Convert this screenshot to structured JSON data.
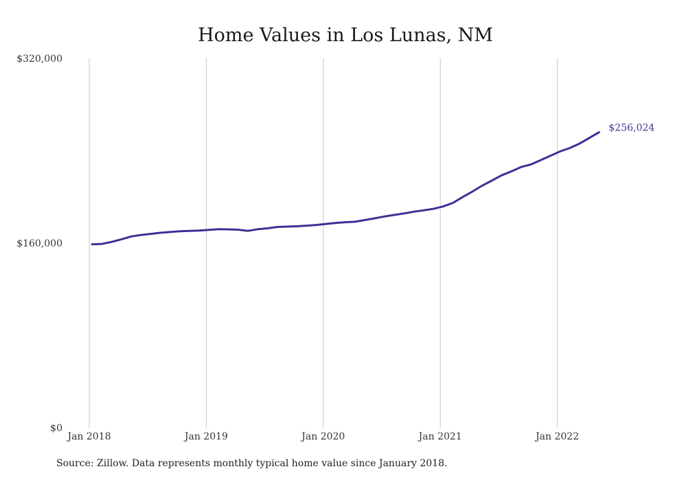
{
  "chart_data": {
    "type": "line",
    "title": "Home Values in Los Lunas, NM",
    "xlabel": "",
    "ylabel": "",
    "x_ticks": [
      "Jan 2018",
      "Jan 2019",
      "Jan 2020",
      "Jan 2021",
      "Jan 2022"
    ],
    "y_ticks": [
      "$0",
      "$160,000",
      "$320,000"
    ],
    "y_tick_values": [
      0,
      160000,
      320000
    ],
    "ylim": [
      0,
      320000
    ],
    "xlim": [
      "2018-01",
      "2022-06"
    ],
    "grid": "vertical",
    "line_color": "#3a3196",
    "gridline_color": "#c8c8c8",
    "end_label": "$256,024",
    "series": [
      {
        "x": [
          "2018-01",
          "2018-02",
          "2018-03",
          "2018-04",
          "2018-05",
          "2018-06",
          "2018-07",
          "2018-08",
          "2018-09",
          "2018-10",
          "2018-11",
          "2018-12",
          "2019-01",
          "2019-02",
          "2019-03",
          "2019-04",
          "2019-05",
          "2019-06",
          "2019-07",
          "2019-08",
          "2019-09",
          "2019-10",
          "2019-11",
          "2019-12",
          "2020-01",
          "2020-02",
          "2020-03",
          "2020-04",
          "2020-05",
          "2020-06",
          "2020-07",
          "2020-08",
          "2020-09",
          "2020-10",
          "2020-11",
          "2020-12",
          "2021-01",
          "2021-02",
          "2021-03",
          "2021-04",
          "2021-05",
          "2021-06",
          "2021-07",
          "2021-08",
          "2021-09",
          "2021-10",
          "2021-11",
          "2021-12",
          "2022-01",
          "2022-02",
          "2022-03",
          "2022-04",
          "2022-05"
        ],
        "values": [
          158900,
          159300,
          161000,
          163200,
          165700,
          167000,
          168000,
          168900,
          169600,
          170300,
          170600,
          170900,
          171500,
          172100,
          171900,
          171600,
          170600,
          172000,
          172800,
          174000,
          174300,
          174600,
          175100,
          175700,
          176600,
          177500,
          178100,
          178500,
          180000,
          181500,
          183100,
          184400,
          185700,
          187200,
          188400,
          189700,
          191700,
          194800,
          199800,
          204600,
          209700,
          214100,
          218700,
          222100,
          225900,
          228100,
          231800,
          235600,
          239400,
          242400,
          246200,
          251100,
          256024
        ]
      }
    ]
  },
  "source_text": "Source: Zillow. Data represents monthly typical home value since January 2018."
}
